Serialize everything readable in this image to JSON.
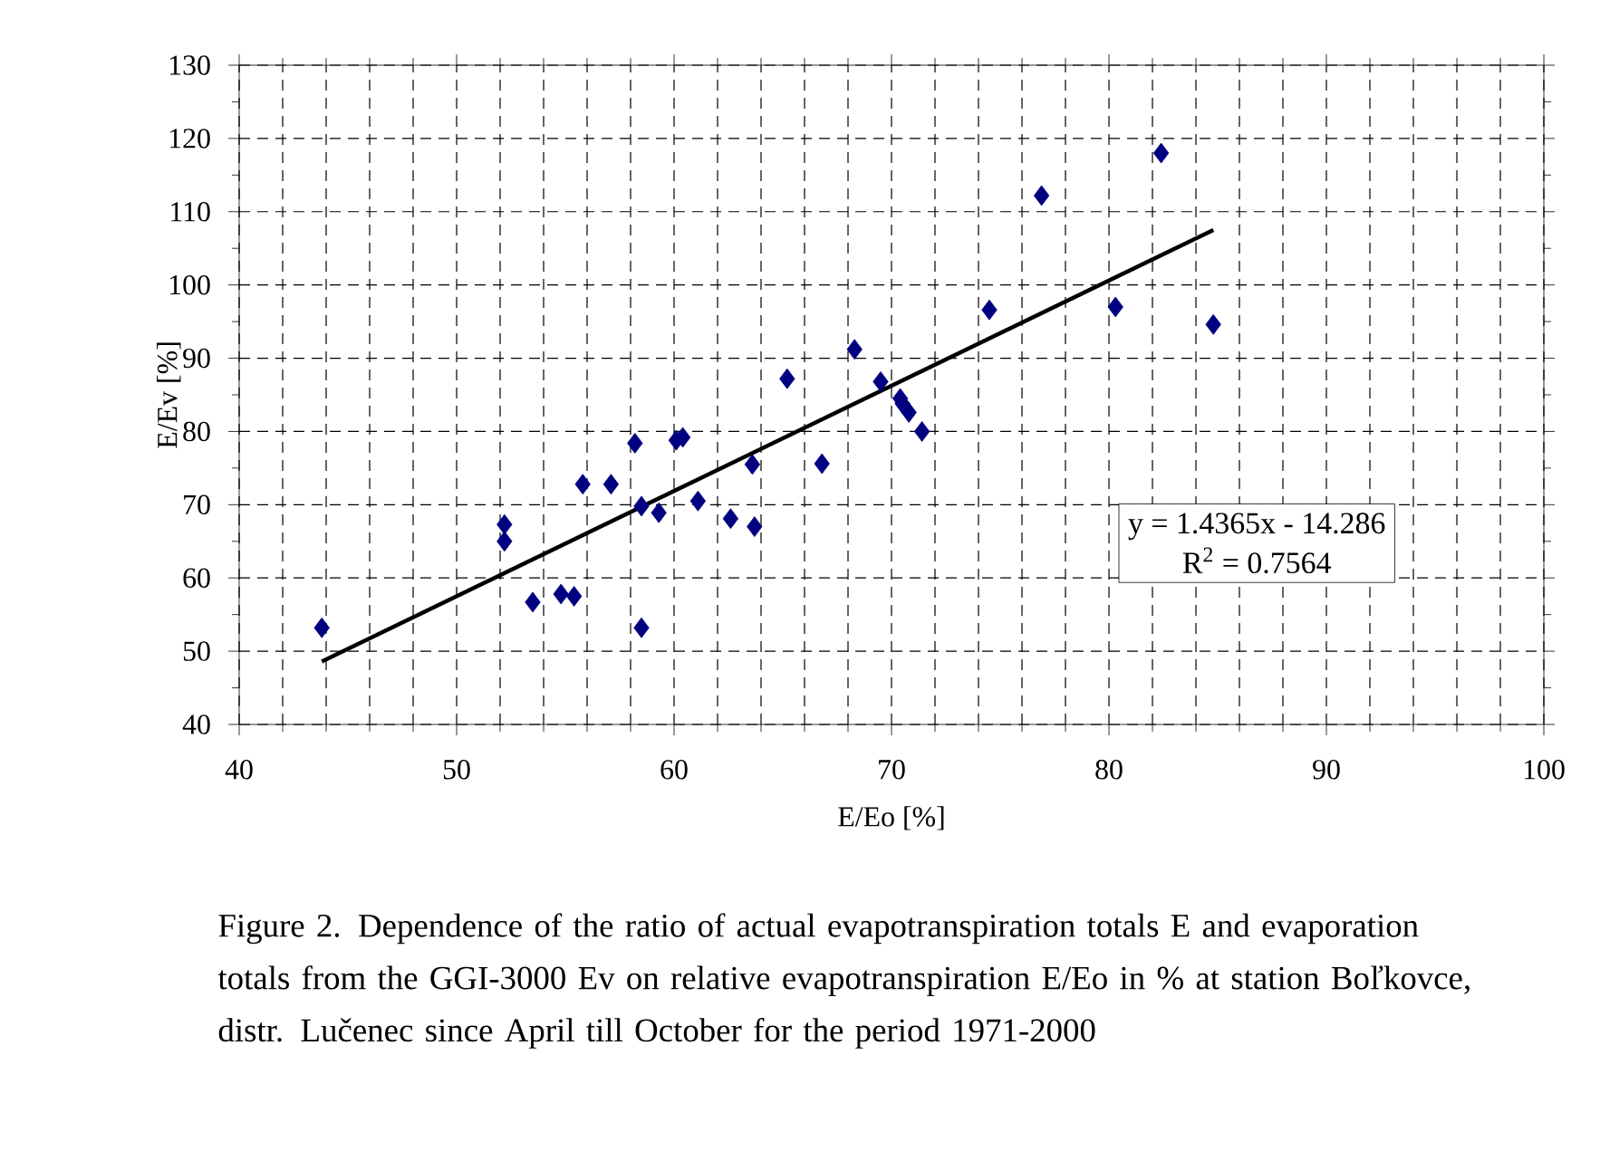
{
  "chart_data": {
    "type": "scatter",
    "xlabel": "E/Eo [%]",
    "ylabel": "E/Ev [%]",
    "xlim": [
      40,
      100
    ],
    "ylim": [
      40,
      130
    ],
    "xticks": [
      40,
      {
        "value": 42,
        "label": null
      },
      {
        "value": 44,
        "label": null
      },
      {
        "value": 46,
        "label": null
      },
      {
        "value": 48,
        "label": null
      },
      50,
      {
        "value": 52,
        "label": null
      },
      {
        "value": 54,
        "label": null
      },
      {
        "value": 56,
        "label": null
      },
      {
        "value": 58,
        "label": null
      },
      60,
      {
        "value": 62,
        "label": null
      },
      {
        "value": 64,
        "label": null
      },
      {
        "value": 66,
        "label": null
      },
      {
        "value": 68,
        "label": null
      },
      70,
      {
        "value": 72,
        "label": null
      },
      {
        "value": 74,
        "label": null
      },
      {
        "value": 76,
        "label": null
      },
      {
        "value": 78,
        "label": null
      },
      80,
      {
        "value": 82,
        "label": null
      },
      {
        "value": 84,
        "label": null
      },
      {
        "value": 86,
        "label": null
      },
      {
        "value": 88,
        "label": null
      },
      90,
      {
        "value": 92,
        "label": null
      },
      {
        "value": 94,
        "label": null
      },
      {
        "value": 96,
        "label": null
      },
      {
        "value": 98,
        "label": null
      },
      100
    ],
    "yticks": [
      40,
      {
        "value": 45,
        "label": null
      },
      50,
      {
        "value": 55,
        "label": null
      },
      60,
      {
        "value": 65,
        "label": null
      },
      70,
      {
        "value": 75,
        "label": null
      },
      80,
      {
        "value": 85,
        "label": null
      },
      90,
      {
        "value": 95,
        "label": null
      },
      100,
      {
        "value": 105,
        "label": null
      },
      110,
      {
        "value": 115,
        "label": null
      },
      120,
      {
        "value": 125,
        "label": null
      },
      130
    ],
    "grid": true,
    "marker": "diamond",
    "series": [
      {
        "color": "#000080",
        "x": [
          43.8,
          52.2,
          52.2,
          53.5,
          54.8,
          55.4,
          55.8,
          57.1,
          58.2,
          58.5,
          58.5,
          59.3,
          60.1,
          60.4,
          61.1,
          62.6,
          63.6,
          63.7,
          65.2,
          66.8,
          68.3,
          69.5,
          70.4,
          70.5,
          70.8,
          71.4,
          74.5,
          76.9,
          80.3,
          82.4,
          84.8
        ],
        "values": [
          53.2,
          67.3,
          65.0,
          56.7,
          57.8,
          57.5,
          72.8,
          72.8,
          78.4,
          69.8,
          53.2,
          68.9,
          78.8,
          79.2,
          70.5,
          68.1,
          75.5,
          67.0,
          87.2,
          75.6,
          91.2,
          86.8,
          84.5,
          83.8,
          82.6,
          80.0,
          96.6,
          112.2,
          97.0,
          118.0,
          94.6
        ]
      },
      {
        "type": "line",
        "marker": "none",
        "color": "#000000",
        "x": [
          43.8,
          84.8
        ],
        "values": [
          48.6,
          107.5
        ]
      }
    ],
    "annotations": [
      "y = 1.4365x - 14.286",
      "R$^{2}$ = 0.7564",
      "Figure 2. Dependence of  the ratio of  actual evapotranspiration totals E and evaporation totals from the GGI-3000 Ev on relative evapotranspiration E/Eo in % at station Boľkovce, distr. Lučenec since April till October for the period 1971-2000"
    ]
  }
}
